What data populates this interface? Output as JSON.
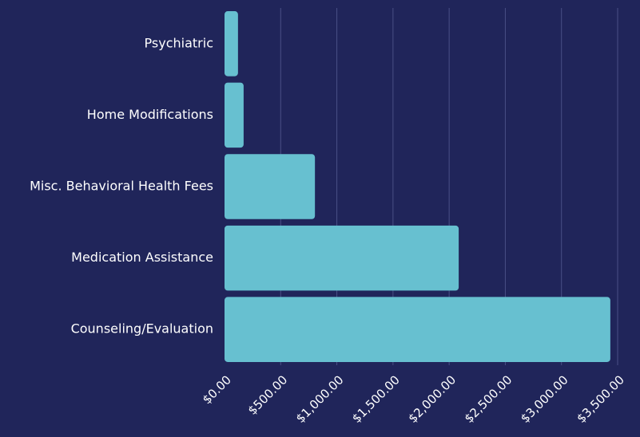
{
  "chart_data": {
    "type": "bar",
    "orientation": "horizontal",
    "categories": [
      "Psychiatric",
      "Home Modifications",
      "Misc. Behavioral Health Fees",
      "Medication Assistance",
      "Counseling/Evaluation"
    ],
    "values": [
      120,
      170,
      805,
      2085,
      3435
    ],
    "color": "#67c0d0",
    "xlim": [
      0,
      3500
    ],
    "xticks": [
      {
        "value": 0,
        "label": "$0.00"
      },
      {
        "value": 500,
        "label": "$500.00"
      },
      {
        "value": 1000,
        "label": "$1,000.00"
      },
      {
        "value": 1500,
        "label": "$1,500.00"
      },
      {
        "value": 2000,
        "label": "$2,000.00"
      },
      {
        "value": 2500,
        "label": "$2,500.00"
      },
      {
        "value": 3000,
        "label": "$3,000.00"
      },
      {
        "value": 3500,
        "label": "$3,500.00"
      }
    ],
    "grid": true
  }
}
